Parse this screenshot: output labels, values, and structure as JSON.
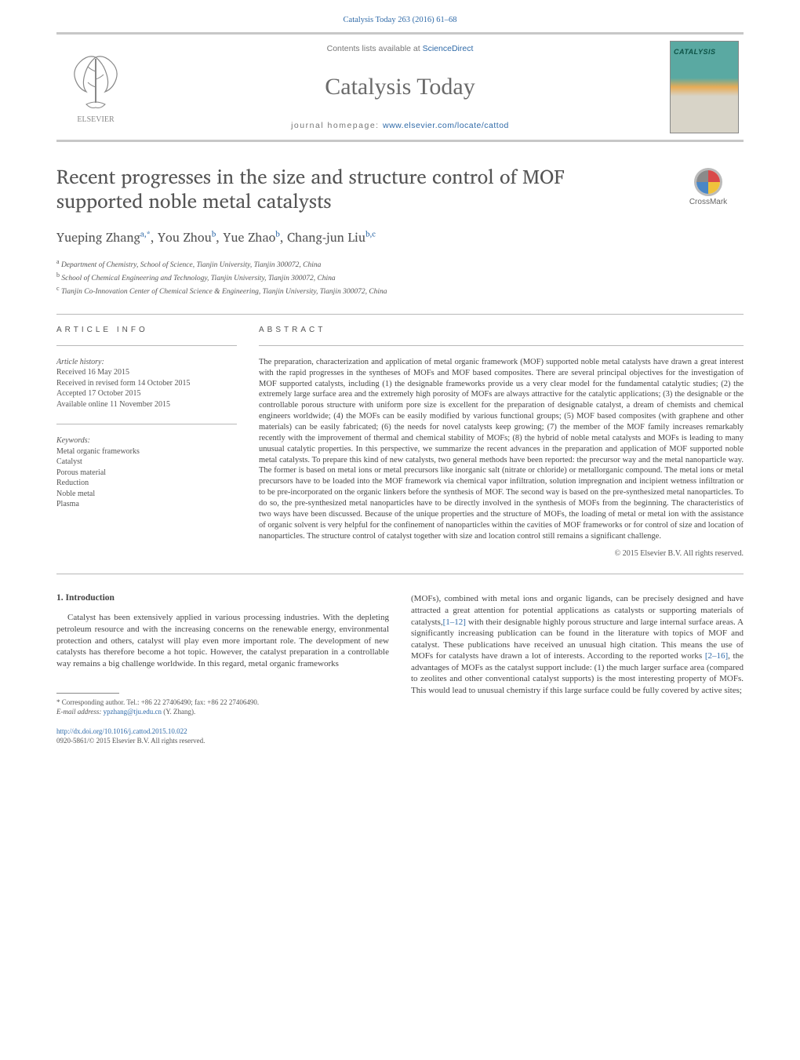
{
  "header": {
    "citation": "Catalysis Today 263 (2016) 61–68",
    "contents_prefix": "Contents lists available at ",
    "contents_link": "ScienceDirect",
    "journal_name": "Catalysis Today",
    "homepage_prefix": "journal homepage: ",
    "homepage_url": "www.elsevier.com/locate/cattod",
    "elsevier_label": "ELSEVIER",
    "cover_title": "CATALYSIS"
  },
  "crossmark": {
    "label": "CrossMark"
  },
  "title": "Recent progresses in the size and structure control of MOF supported noble metal catalysts",
  "authors_html": "Yueping Zhang<sup>a,*</sup>, You Zhou<sup>b</sup>, Yue Zhao<sup>b</sup>, Chang-jun Liu<sup>b,c</sup>",
  "affiliations": [
    "a Department of Chemistry, School of Science, Tianjin University, Tianjin 300072, China",
    "b School of Chemical Engineering and Technology, Tianjin University, Tianjin 300072, China",
    "c Tianjin Co-Innovation Center of Chemical Science & Engineering, Tianjin University, Tianjin 300072, China"
  ],
  "article_info": {
    "heading": "ARTICLE INFO",
    "history_label": "Article history:",
    "history": [
      "Received 16 May 2015",
      "Received in revised form 14 October 2015",
      "Accepted 17 October 2015",
      "Available online 11 November 2015"
    ],
    "keywords_label": "Keywords:",
    "keywords": [
      "Metal organic frameworks",
      "Catalyst",
      "Porous material",
      "Reduction",
      "Noble metal",
      "Plasma"
    ]
  },
  "abstract": {
    "heading": "ABSTRACT",
    "text": "The preparation, characterization and application of metal organic framework (MOF) supported noble metal catalysts have drawn a great interest with the rapid progresses in the syntheses of MOFs and MOF based composites. There are several principal objectives for the investigation of MOF supported catalysts, including (1) the designable frameworks provide us a very clear model for the fundamental catalytic studies; (2) the extremely large surface area and the extremely high porosity of MOFs are always attractive for the catalytic applications; (3) the designable or the controllable porous structure with uniform pore size is excellent for the preparation of designable catalyst, a dream of chemists and chemical engineers worldwide; (4) the MOFs can be easily modified by various functional groups; (5) MOF based composites (with graphene and other materials) can be easily fabricated; (6) the needs for novel catalysts keep growing; (7) the member of the MOF family increases remarkably recently with the improvement of thermal and chemical stability of MOFs; (8) the hybrid of noble metal catalysts and MOFs is leading to many unusual catalytic properties. In this perspective, we summarize the recent advances in the preparation and application of MOF supported noble metal catalysts. To prepare this kind of new catalysts, two general methods have been reported: the precursor way and the metal nanoparticle way. The former is based on metal ions or metal precursors like inorganic salt (nitrate or chloride) or metallorganic compound. The metal ions or metal precursors have to be loaded into the MOF framework via chemical vapor infiltration, solution impregnation and incipient wetness infiltration or to be pre-incorporated on the organic linkers before the synthesis of MOF. The second way is based on the pre-synthesized metal nanoparticles. To do so, the pre-synthesized metal nanoparticles have to be directly involved in the synthesis of MOFs from the beginning. The characteristics of two ways have been discussed. Because of the unique properties and the structure of MOFs, the loading of metal or metal ion with the assistance of organic solvent is very helpful for the confinement of nanoparticles within the cavities of MOF frameworks or for control of size and location of nanoparticles. The structure control of catalyst together with size and location control still remains a significant challenge.",
    "copyright": "© 2015 Elsevier B.V. All rights reserved."
  },
  "body": {
    "section_heading": "1.  Introduction",
    "col1": "Catalyst has been extensively applied in various processing industries. With the depleting petroleum resource and with the increasing concerns on the renewable energy, environmental protection and others, catalyst will play even more important role. The development of new catalysts has therefore become a hot topic. However, the catalyst preparation in a controllable way remains a big challenge worldwide. In this regard, metal organic frameworks",
    "col2_pre": "(MOFs), combined with metal ions and organic ligands, can be precisely designed and have attracted a great attention for potential applications as catalysts or supporting materials of catalysts,",
    "col2_ref1": "[1–12]",
    "col2_mid": " with their designable highly porous structure and large internal surface areas. A significantly increasing publication can be found in the literature with topics of MOF and catalyst. These publications have received an unusual high citation. This means the use of MOFs for catalysts have drawn a lot of interests. According to the reported works ",
    "col2_ref2": "[2–16]",
    "col2_post": ", the advantages of MOFs as the catalyst support include: (1) the much larger surface area (compared to zeolites and other conventional catalyst supports) is the most interesting property of MOFs. This would lead to unusual chemistry if this large surface could be fully covered by active sites;"
  },
  "footnote": {
    "corr": "* Corresponding author. Tel.: +86 22 27406490; fax: +86 22 27406490.",
    "email_label": "E-mail address: ",
    "email": "ypzhang@tju.edu.cn",
    "email_suffix": " (Y. Zhang)."
  },
  "footer": {
    "doi": "http://dx.doi.org/10.1016/j.cattod.2015.10.022",
    "issn_line": "0920-5861/© 2015 Elsevier B.V. All rights reserved."
  },
  "colors": {
    "link": "#2f6aa8",
    "text": "#3a3a3a",
    "rule": "#c7c7c7",
    "header_text": "#6b6b6b"
  }
}
